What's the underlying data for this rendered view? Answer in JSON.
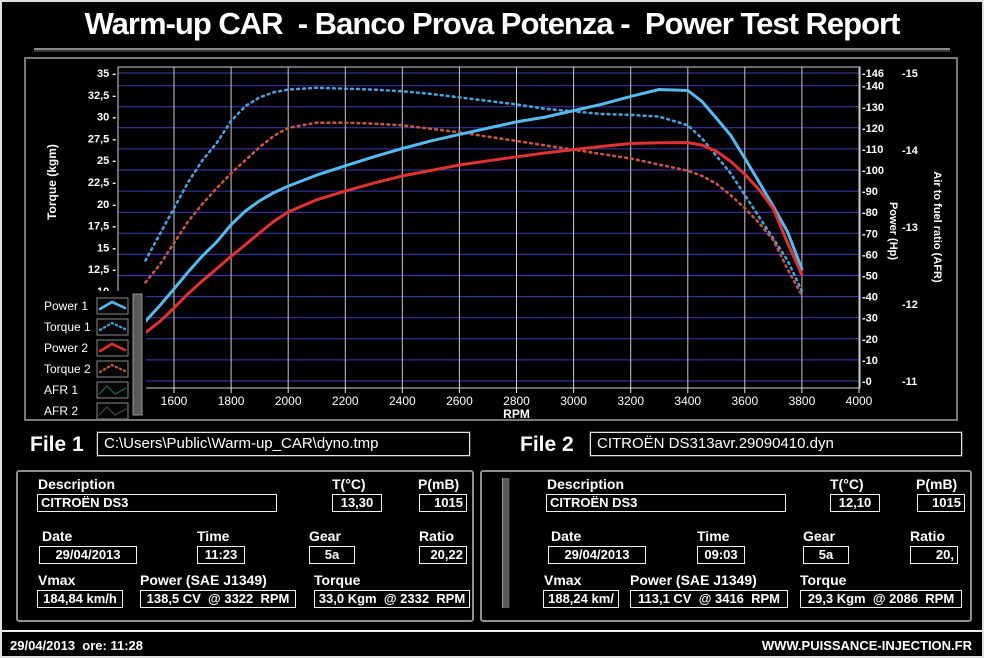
{
  "window": {
    "title": "Warm-up CAR  - Banco Prova Potenza -  Power Test Report",
    "statusbar": {
      "left": "29/04/2013  ore: 11:28",
      "right": "WWW.PUISSANCE-INJECTION.FR"
    }
  },
  "files": {
    "file1_label": "File 1",
    "file1_value": "C:\\Users\\Public\\Warm-up_CAR\\dyno.tmp",
    "file2_label": "File 2",
    "file2_value": "CITROËN DS313avr.29090410.dyn"
  },
  "panels": [
    {
      "description_label": "Description",
      "description": "CITROËN DS3",
      "temp_label": "T(°C)",
      "temp": "13,30",
      "pressure_label": "P(mB)",
      "pressure": "1015",
      "date_label": "Date",
      "date": "29/04/2013",
      "time_label": "Time",
      "time": "11:23",
      "gear_label": "Gear",
      "gear": "5a",
      "ratio_label": "Ratio",
      "ratio": "20,22",
      "vmax_label": "Vmax",
      "vmax": "184,84 km/h",
      "power_label": "Power (SAE J1349)",
      "power": "138,5 CV  @ 3322  RPM",
      "torque_label": "Torque",
      "torque": "33,0 Kgm  @ 2332  RPM"
    },
    {
      "description_label": "Description",
      "description": "CITROËN DS3",
      "temp_label": "T(°C)",
      "temp": "12,10",
      "pressure_label": "P(mB)",
      "pressure": "1015",
      "date_label": "Date",
      "date": "29/04/2013",
      "time_label": "Time",
      "time": "09:03",
      "gear_label": "Gear",
      "gear": "5a",
      "ratio_label": "Ratio",
      "ratio": "20,",
      "vmax_label": "Vmax",
      "vmax": "188,24 km/",
      "power_label": "Power (SAE J1349)",
      "power": "113,1 CV  @ 3416  RPM",
      "torque_label": "Torque",
      "torque": "29,3 Kgm  @ 2086  RPM"
    }
  ],
  "chart_data": {
    "type": "line",
    "xlabel": "RPM",
    "x_ticks": [
      1600,
      1800,
      2000,
      2200,
      2400,
      2600,
      2800,
      3000,
      3200,
      3400,
      3600,
      3800,
      4000
    ],
    "x_range": [
      1420,
      4020
    ],
    "axes": {
      "torque": {
        "label": "Torque (kgm)",
        "ticks": [
          "35",
          "32,5",
          "30",
          "27,5",
          "25",
          "22,5",
          "20",
          "17,5",
          "15",
          "12,5",
          "10"
        ],
        "range": [
          10,
          35
        ]
      },
      "power": {
        "label": "Power (Hp)",
        "ticks": [
          146,
          140,
          130,
          120,
          110,
          100,
          90,
          80,
          70,
          60,
          50,
          40,
          30,
          20,
          10,
          0
        ],
        "range": [
          0,
          146
        ]
      },
      "afr": {
        "label": "Air to fuel ratio (AFR)",
        "ticks": [
          15,
          14,
          13,
          12,
          11
        ],
        "range": [
          15,
          11
        ]
      }
    },
    "grid": {
      "h_color": "#3c3cb4",
      "v_color": "#c8c8c8",
      "on": true
    },
    "legend_position": "bottom-left",
    "x": [
      1500,
      1550,
      1600,
      1650,
      1700,
      1750,
      1800,
      1850,
      1900,
      1950,
      2000,
      2100,
      2200,
      2300,
      2400,
      2500,
      2600,
      2700,
      2800,
      2900,
      3000,
      3100,
      3200,
      3300,
      3400,
      3450,
      3500,
      3550,
      3600,
      3650,
      3700,
      3750,
      3800
    ],
    "series": [
      {
        "name": "Power 1",
        "axis": "power",
        "style": "solid",
        "color": "#55bbee",
        "values": [
          28.3,
          35.7,
          43.6,
          51.8,
          59.3,
          66.0,
          74.1,
          80.6,
          85.4,
          89.3,
          92.4,
          97.6,
          102.0,
          106.3,
          110.2,
          113.8,
          116.9,
          119.9,
          122.8,
          125.1,
          128.2,
          131.2,
          134.9,
          138.2,
          137.7,
          132.5,
          124.6,
          116.5,
          105.6,
          94.3,
          82.7,
          70.7,
          53.1
        ]
      },
      {
        "name": "Torque 1",
        "axis": "torque",
        "style": "dotted",
        "color": "#4c9fd8",
        "values": [
          13.5,
          16.5,
          19.5,
          22.5,
          25.0,
          27.0,
          29.5,
          31.2,
          32.2,
          32.8,
          33.1,
          33.3,
          33.2,
          33.1,
          32.9,
          32.6,
          32.2,
          31.8,
          31.4,
          30.9,
          30.6,
          30.3,
          30.2,
          30.0,
          29.0,
          27.5,
          25.5,
          23.5,
          21.0,
          18.5,
          16.0,
          13.5,
          10.0
        ]
      },
      {
        "name": "Power 2",
        "axis": "power",
        "style": "solid",
        "color": "#e03232",
        "values": [
          23.0,
          28.1,
          34.6,
          41.5,
          47.5,
          53.3,
          59.1,
          64.6,
          70.3,
          75.7,
          80.1,
          85.9,
          90.0,
          93.8,
          97.2,
          99.8,
          102.4,
          104.4,
          106.3,
          108.1,
          109.7,
          111.2,
          112.6,
          112.9,
          113.0,
          111.8,
          109.0,
          104.1,
          98.0,
          90.7,
          81.6,
          65.4,
          50.4
        ]
      },
      {
        "name": "Torque 2",
        "axis": "torque",
        "style": "dotted",
        "color": "#c25748",
        "values": [
          11.0,
          13.0,
          15.5,
          18.0,
          20.0,
          21.8,
          23.5,
          25.0,
          26.5,
          27.8,
          28.7,
          29.3,
          29.3,
          29.2,
          29.0,
          28.6,
          28.2,
          27.7,
          27.2,
          26.7,
          26.2,
          25.7,
          25.2,
          24.5,
          23.8,
          23.2,
          22.3,
          21.0,
          19.5,
          17.8,
          15.8,
          12.5,
          9.5
        ]
      },
      {
        "name": "AFR 1",
        "axis": "afr",
        "style": "thin",
        "color": "#1a6a5a",
        "values": []
      },
      {
        "name": "AFR 2",
        "axis": "afr",
        "style": "thin",
        "color": "#4a4a38",
        "values": []
      }
    ]
  }
}
